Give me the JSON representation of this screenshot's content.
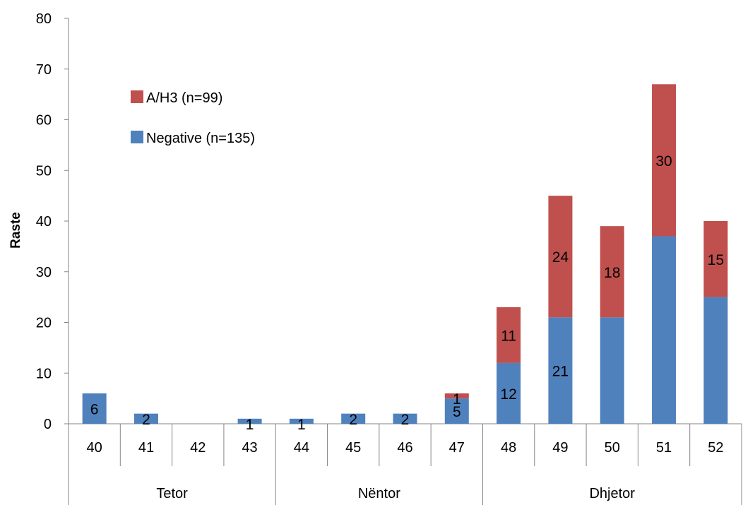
{
  "chart_data": {
    "type": "bar",
    "stacked": true,
    "categories": [
      "40",
      "41",
      "42",
      "43",
      "44",
      "45",
      "46",
      "47",
      "48",
      "49",
      "50",
      "51",
      "52"
    ],
    "groups": [
      {
        "label": "Tetor",
        "categories": [
          "40",
          "41",
          "42",
          "43"
        ]
      },
      {
        "label": "Nëntor",
        "categories": [
          "44",
          "45",
          "46",
          "47"
        ]
      },
      {
        "label": "Dhjetor",
        "categories": [
          "48",
          "49",
          "50",
          "51",
          "52"
        ]
      }
    ],
    "series": [
      {
        "name": "Negative (n=135)",
        "color": "#4f81bd",
        "values": [
          6,
          2,
          0,
          1,
          1,
          2,
          2,
          5,
          12,
          21,
          21,
          37,
          25
        ],
        "labels": [
          "6",
          "2",
          "",
          "1",
          "1",
          "2",
          "2",
          "5",
          "12",
          "21",
          "",
          "",
          ""
        ]
      },
      {
        "name": "A/H3 (n=99)",
        "color": "#c0504d",
        "values": [
          0,
          0,
          0,
          0,
          0,
          0,
          0,
          1,
          11,
          24,
          18,
          30,
          15
        ],
        "labels": [
          "",
          "",
          "",
          "",
          "",
          "",
          "",
          "1",
          "11",
          "24",
          "18",
          "30",
          "15"
        ]
      }
    ],
    "ylabel": "Raste",
    "ylim": [
      0,
      80
    ],
    "yticks": [
      0,
      10,
      20,
      30,
      40,
      50,
      60,
      70,
      80
    ],
    "grid": false,
    "legend_position": "top-left"
  }
}
